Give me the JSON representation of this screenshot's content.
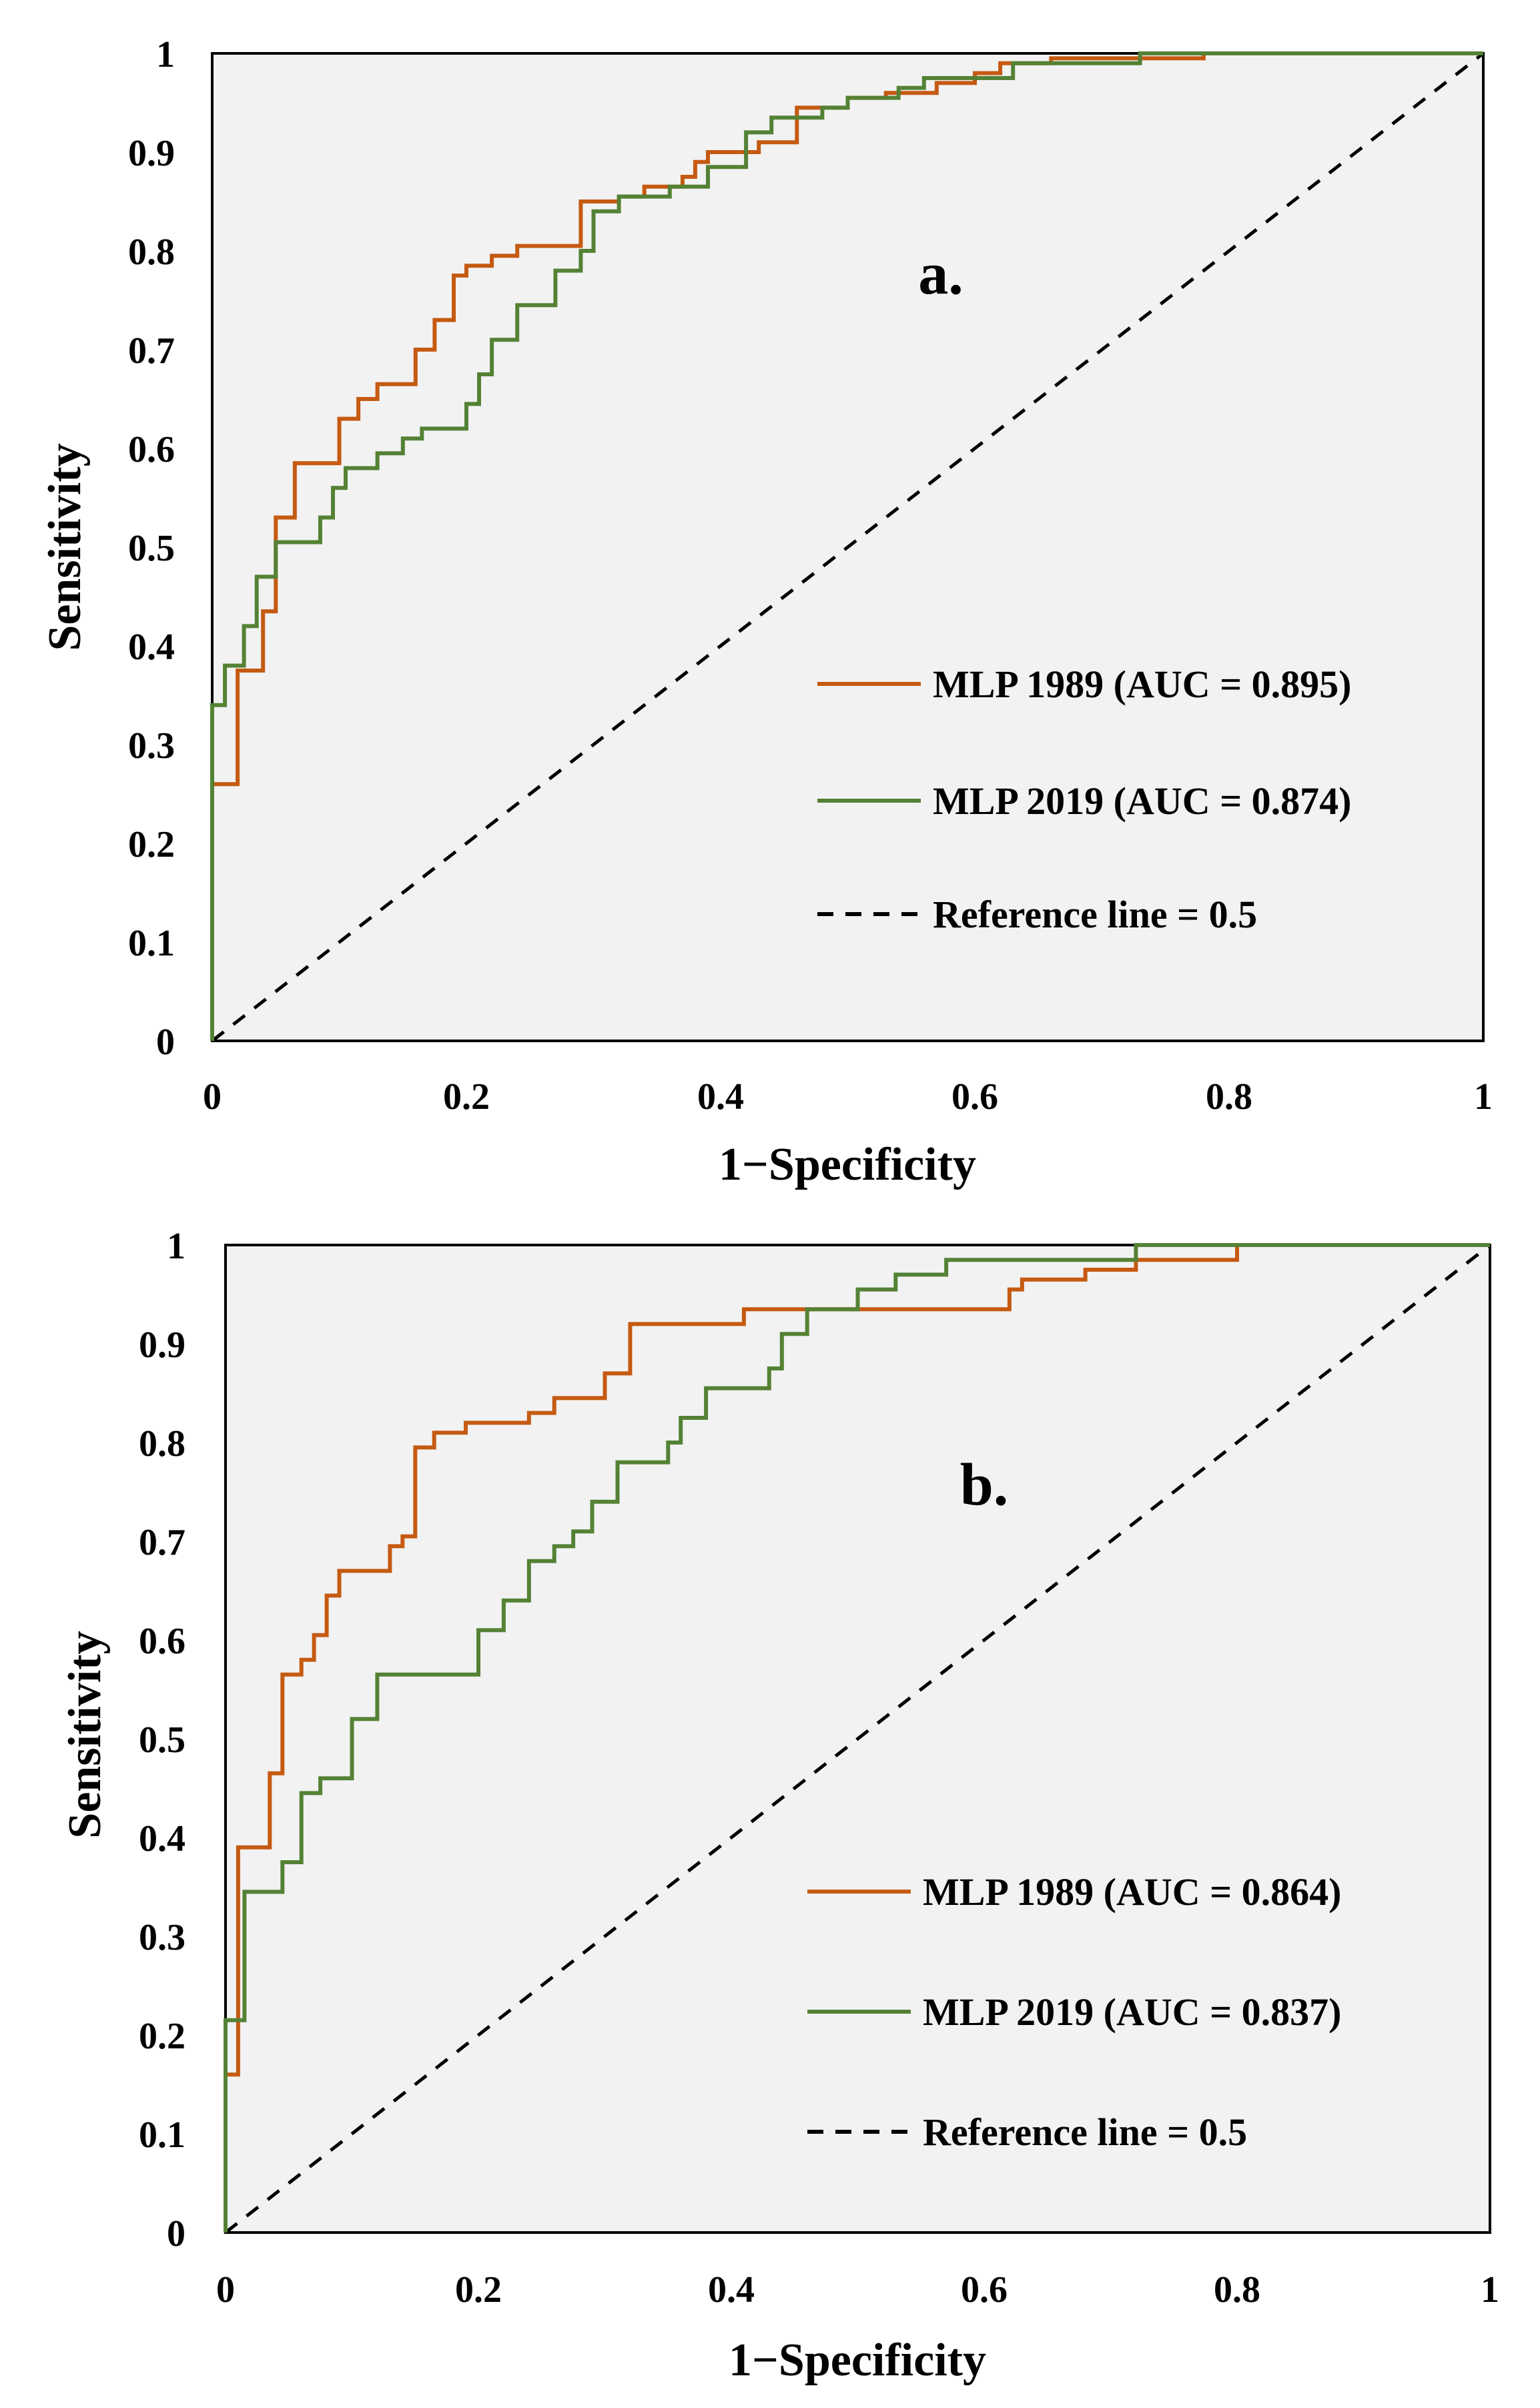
{
  "colors": {
    "mlp1989": "#C55A11",
    "mlp2019": "#548235",
    "reference": "#000000",
    "plot_bg": "#F2F2F2",
    "frame": "#000000"
  },
  "chart_data": [
    {
      "type": "line",
      "panel_label": "a.",
      "xlabel": "1−Specificity",
      "ylabel": "Sensitivity",
      "xlim": [
        0,
        1
      ],
      "ylim": [
        0,
        1
      ],
      "x_ticks": [
        "0",
        "0.2",
        "0.4",
        "0.6",
        "0.8",
        "1"
      ],
      "y_ticks": [
        "0",
        "0.1",
        "0.2",
        "0.3",
        "0.4",
        "0.5",
        "0.6",
        "0.7",
        "0.8",
        "0.9",
        "1"
      ],
      "grid": false,
      "legend_position": "lower-right",
      "series": [
        {
          "name": "MLP 1989 (AUC = 0.895)",
          "color_key": "mlp1989",
          "points": [
            [
              0,
              0
            ],
            [
              0,
              0.26
            ],
            [
              0.02,
              0.26
            ],
            [
              0.02,
              0.375
            ],
            [
              0.04,
              0.375
            ],
            [
              0.04,
              0.435
            ],
            [
              0.05,
              0.435
            ],
            [
              0.05,
              0.53
            ],
            [
              0.065,
              0.53
            ],
            [
              0.065,
              0.585
            ],
            [
              0.1,
              0.585
            ],
            [
              0.1,
              0.63
            ],
            [
              0.115,
              0.63
            ],
            [
              0.115,
              0.65
            ],
            [
              0.13,
              0.65
            ],
            [
              0.13,
              0.665
            ],
            [
              0.16,
              0.665
            ],
            [
              0.16,
              0.7
            ],
            [
              0.175,
              0.7
            ],
            [
              0.175,
              0.73
            ],
            [
              0.19,
              0.73
            ],
            [
              0.19,
              0.775
            ],
            [
              0.2,
              0.775
            ],
            [
              0.2,
              0.785
            ],
            [
              0.22,
              0.785
            ],
            [
              0.22,
              0.795
            ],
            [
              0.24,
              0.795
            ],
            [
              0.24,
              0.805
            ],
            [
              0.29,
              0.805
            ],
            [
              0.29,
              0.85
            ],
            [
              0.32,
              0.85
            ],
            [
              0.32,
              0.855
            ],
            [
              0.34,
              0.855
            ],
            [
              0.34,
              0.865
            ],
            [
              0.37,
              0.865
            ],
            [
              0.37,
              0.875
            ],
            [
              0.38,
              0.875
            ],
            [
              0.38,
              0.89
            ],
            [
              0.39,
              0.89
            ],
            [
              0.39,
              0.9
            ],
            [
              0.43,
              0.9
            ],
            [
              0.43,
              0.91
            ],
            [
              0.46,
              0.91
            ],
            [
              0.46,
              0.945
            ],
            [
              0.5,
              0.945
            ],
            [
              0.5,
              0.955
            ],
            [
              0.53,
              0.955
            ],
            [
              0.53,
              0.96
            ],
            [
              0.57,
              0.96
            ],
            [
              0.57,
              0.97
            ],
            [
              0.6,
              0.97
            ],
            [
              0.6,
              0.98
            ],
            [
              0.62,
              0.98
            ],
            [
              0.62,
              0.99
            ],
            [
              0.66,
              0.99
            ],
            [
              0.66,
              0.995
            ],
            [
              0.78,
              0.995
            ],
            [
              0.78,
              1
            ],
            [
              1,
              1
            ]
          ]
        },
        {
          "name": "MLP 2019 (AUC = 0.874)",
          "color_key": "mlp2019",
          "points": [
            [
              0,
              0
            ],
            [
              0,
              0.34
            ],
            [
              0.01,
              0.34
            ],
            [
              0.01,
              0.38
            ],
            [
              0.025,
              0.38
            ],
            [
              0.025,
              0.42
            ],
            [
              0.035,
              0.42
            ],
            [
              0.035,
              0.47
            ],
            [
              0.05,
              0.47
            ],
            [
              0.05,
              0.505
            ],
            [
              0.085,
              0.505
            ],
            [
              0.085,
              0.53
            ],
            [
              0.095,
              0.53
            ],
            [
              0.095,
              0.56
            ],
            [
              0.105,
              0.56
            ],
            [
              0.105,
              0.58
            ],
            [
              0.13,
              0.58
            ],
            [
              0.13,
              0.595
            ],
            [
              0.15,
              0.595
            ],
            [
              0.15,
              0.61
            ],
            [
              0.165,
              0.61
            ],
            [
              0.165,
              0.62
            ],
            [
              0.2,
              0.62
            ],
            [
              0.2,
              0.645
            ],
            [
              0.21,
              0.645
            ],
            [
              0.21,
              0.675
            ],
            [
              0.22,
              0.675
            ],
            [
              0.22,
              0.71
            ],
            [
              0.24,
              0.71
            ],
            [
              0.24,
              0.745
            ],
            [
              0.27,
              0.745
            ],
            [
              0.27,
              0.78
            ],
            [
              0.29,
              0.78
            ],
            [
              0.29,
              0.8
            ],
            [
              0.3,
              0.8
            ],
            [
              0.3,
              0.84
            ],
            [
              0.32,
              0.84
            ],
            [
              0.32,
              0.855
            ],
            [
              0.36,
              0.855
            ],
            [
              0.36,
              0.865
            ],
            [
              0.39,
              0.865
            ],
            [
              0.39,
              0.885
            ],
            [
              0.42,
              0.885
            ],
            [
              0.42,
              0.92
            ],
            [
              0.44,
              0.92
            ],
            [
              0.44,
              0.935
            ],
            [
              0.48,
              0.935
            ],
            [
              0.48,
              0.945
            ],
            [
              0.5,
              0.945
            ],
            [
              0.5,
              0.955
            ],
            [
              0.54,
              0.955
            ],
            [
              0.54,
              0.965
            ],
            [
              0.56,
              0.965
            ],
            [
              0.56,
              0.975
            ],
            [
              0.63,
              0.975
            ],
            [
              0.63,
              0.99
            ],
            [
              0.73,
              0.99
            ],
            [
              0.73,
              1
            ],
            [
              1,
              1
            ]
          ]
        },
        {
          "name": "Reference line = 0.5",
          "color_key": "reference",
          "dashed": true,
          "points": [
            [
              0,
              0
            ],
            [
              1,
              1
            ]
          ]
        }
      ]
    },
    {
      "type": "line",
      "panel_label": "b.",
      "xlabel": "1−Specificity",
      "ylabel": "Sensitivity",
      "xlim": [
        0,
        1
      ],
      "ylim": [
        0,
        1
      ],
      "x_ticks": [
        "0",
        "0.2",
        "0.4",
        "0.6",
        "0.8",
        "1"
      ],
      "y_ticks": [
        "0",
        "0.1",
        "0.2",
        "0.3",
        "0.4",
        "0.5",
        "0.6",
        "0.7",
        "0.8",
        "0.9",
        "1"
      ],
      "grid": false,
      "legend_position": "lower-right",
      "series": [
        {
          "name": "MLP 1989 (AUC = 0.864)",
          "color_key": "mlp1989",
          "points": [
            [
              0,
              0
            ],
            [
              0,
              0.16
            ],
            [
              0.01,
              0.16
            ],
            [
              0.01,
              0.39
            ],
            [
              0.035,
              0.39
            ],
            [
              0.035,
              0.465
            ],
            [
              0.045,
              0.465
            ],
            [
              0.045,
              0.565
            ],
            [
              0.06,
              0.565
            ],
            [
              0.06,
              0.58
            ],
            [
              0.07,
              0.58
            ],
            [
              0.07,
              0.605
            ],
            [
              0.08,
              0.605
            ],
            [
              0.08,
              0.645
            ],
            [
              0.09,
              0.645
            ],
            [
              0.09,
              0.67
            ],
            [
              0.13,
              0.67
            ],
            [
              0.13,
              0.695
            ],
            [
              0.14,
              0.695
            ],
            [
              0.14,
              0.705
            ],
            [
              0.15,
              0.705
            ],
            [
              0.15,
              0.795
            ],
            [
              0.165,
              0.795
            ],
            [
              0.165,
              0.81
            ],
            [
              0.19,
              0.81
            ],
            [
              0.19,
              0.82
            ],
            [
              0.24,
              0.82
            ],
            [
              0.24,
              0.83
            ],
            [
              0.26,
              0.83
            ],
            [
              0.26,
              0.845
            ],
            [
              0.3,
              0.845
            ],
            [
              0.3,
              0.87
            ],
            [
              0.32,
              0.87
            ],
            [
              0.32,
              0.92
            ],
            [
              0.41,
              0.92
            ],
            [
              0.41,
              0.935
            ],
            [
              0.62,
              0.935
            ],
            [
              0.62,
              0.955
            ],
            [
              0.63,
              0.955
            ],
            [
              0.63,
              0.965
            ],
            [
              0.68,
              0.965
            ],
            [
              0.68,
              0.975
            ],
            [
              0.72,
              0.975
            ],
            [
              0.72,
              0.985
            ],
            [
              0.8,
              0.985
            ],
            [
              0.8,
              1
            ],
            [
              1,
              1
            ]
          ]
        },
        {
          "name": "MLP 2019 (AUC = 0.837)",
          "color_key": "mlp2019",
          "points": [
            [
              0,
              0
            ],
            [
              0,
              0.215
            ],
            [
              0.015,
              0.215
            ],
            [
              0.015,
              0.345
            ],
            [
              0.045,
              0.345
            ],
            [
              0.045,
              0.375
            ],
            [
              0.06,
              0.375
            ],
            [
              0.06,
              0.445
            ],
            [
              0.075,
              0.445
            ],
            [
              0.075,
              0.46
            ],
            [
              0.1,
              0.46
            ],
            [
              0.1,
              0.52
            ],
            [
              0.12,
              0.52
            ],
            [
              0.12,
              0.565
            ],
            [
              0.2,
              0.565
            ],
            [
              0.2,
              0.61
            ],
            [
              0.22,
              0.61
            ],
            [
              0.22,
              0.64
            ],
            [
              0.24,
              0.64
            ],
            [
              0.24,
              0.68
            ],
            [
              0.26,
              0.68
            ],
            [
              0.26,
              0.695
            ],
            [
              0.275,
              0.695
            ],
            [
              0.275,
              0.71
            ],
            [
              0.29,
              0.71
            ],
            [
              0.29,
              0.74
            ],
            [
              0.31,
              0.74
            ],
            [
              0.31,
              0.78
            ],
            [
              0.35,
              0.78
            ],
            [
              0.35,
              0.8
            ],
            [
              0.36,
              0.8
            ],
            [
              0.36,
              0.825
            ],
            [
              0.38,
              0.825
            ],
            [
              0.38,
              0.855
            ],
            [
              0.43,
              0.855
            ],
            [
              0.43,
              0.875
            ],
            [
              0.44,
              0.875
            ],
            [
              0.44,
              0.91
            ],
            [
              0.46,
              0.91
            ],
            [
              0.46,
              0.935
            ],
            [
              0.5,
              0.935
            ],
            [
              0.5,
              0.955
            ],
            [
              0.53,
              0.955
            ],
            [
              0.53,
              0.97
            ],
            [
              0.57,
              0.97
            ],
            [
              0.57,
              0.985
            ],
            [
              0.72,
              0.985
            ],
            [
              0.72,
              1
            ],
            [
              1,
              1
            ]
          ]
        },
        {
          "name": "Reference line = 0.5",
          "color_key": "reference",
          "dashed": true,
          "points": [
            [
              0,
              0
            ],
            [
              1,
              1
            ]
          ]
        }
      ]
    }
  ]
}
